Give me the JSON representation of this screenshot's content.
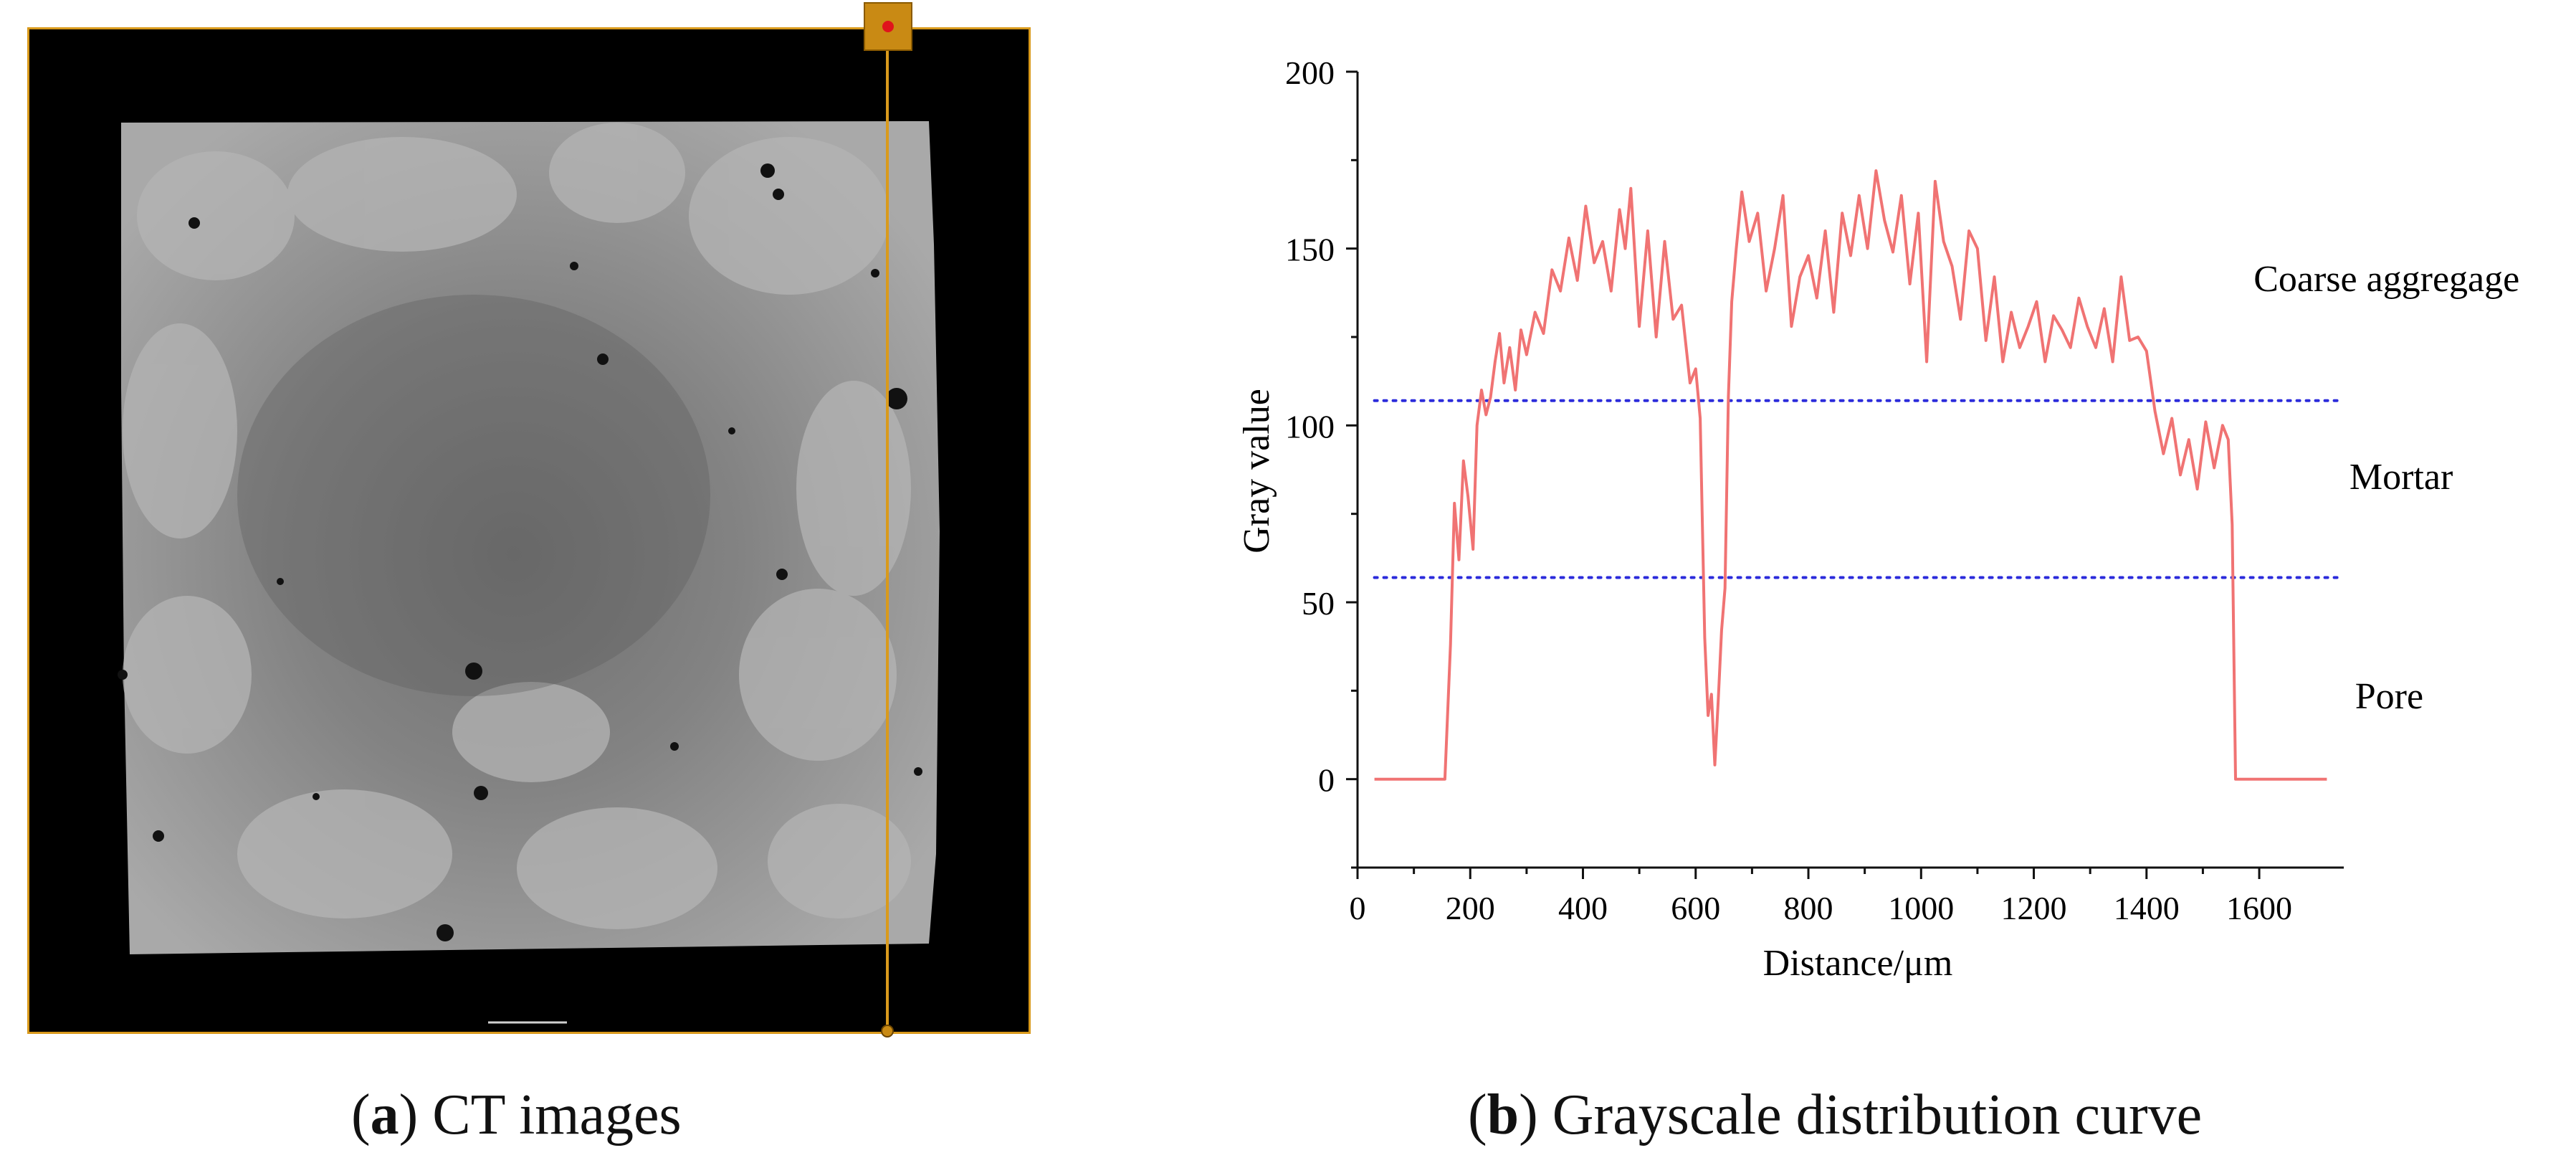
{
  "panel_a": {
    "caption_letter": "a",
    "caption_text": " CT images"
  },
  "panel_b": {
    "caption_letter": "b",
    "caption_text": " Grayscale distribution curve"
  },
  "chart_data": {
    "type": "line",
    "title": "",
    "xlabel": "Distance/μm",
    "ylabel": "Gray value",
    "xlim": [
      0,
      1750
    ],
    "ylim": [
      -25,
      200
    ],
    "xticks": [
      0,
      200,
      400,
      600,
      800,
      1000,
      1200,
      1400,
      1600
    ],
    "yticks": [
      0,
      50,
      100,
      150,
      200
    ],
    "grid": false,
    "line_color": "#f07373",
    "threshold_color": "#2b2bdb",
    "thresholds": [
      107,
      57
    ],
    "region_labels": [
      {
        "text": "Coarse aggregage",
        "x": 1590,
        "y": 138
      },
      {
        "text": "Mortar",
        "x": 1760,
        "y": 82
      },
      {
        "text": "Pore",
        "x": 1770,
        "y": 20
      }
    ],
    "series": [
      {
        "x": [
          30,
          130,
          155,
          165,
          172,
          180,
          188,
          196,
          205,
          212,
          220,
          228,
          236,
          244,
          252,
          260,
          270,
          280,
          290,
          300,
          315,
          330,
          345,
          360,
          375,
          390,
          405,
          420,
          435,
          450,
          465,
          475,
          485,
          500,
          515,
          530,
          545,
          560,
          575,
          590,
          600,
          608,
          616,
          622,
          628,
          634,
          640,
          646,
          652,
          658,
          664,
          672,
          682,
          695,
          710,
          725,
          740,
          755,
          770,
          785,
          800,
          815,
          830,
          845,
          860,
          875,
          890,
          905,
          920,
          935,
          950,
          965,
          980,
          995,
          1010,
          1025,
          1040,
          1055,
          1070,
          1085,
          1100,
          1115,
          1130,
          1145,
          1160,
          1175,
          1190,
          1205,
          1220,
          1235,
          1250,
          1265,
          1280,
          1295,
          1310,
          1325,
          1340,
          1355,
          1370,
          1385,
          1400,
          1415,
          1430,
          1445,
          1460,
          1475,
          1490,
          1505,
          1520,
          1535,
          1545,
          1552,
          1558,
          1570,
          1620,
          1720
        ],
        "y": [
          0,
          0,
          0,
          38,
          78,
          62,
          90,
          80,
          65,
          100,
          110,
          103,
          108,
          118,
          126,
          112,
          122,
          110,
          127,
          120,
          132,
          126,
          144,
          138,
          153,
          141,
          162,
          146,
          152,
          138,
          161,
          150,
          167,
          128,
          155,
          125,
          152,
          130,
          134,
          112,
          116,
          102,
          40,
          18,
          24,
          4,
          22,
          42,
          54,
          108,
          135,
          150,
          166,
          152,
          160,
          138,
          150,
          165,
          128,
          142,
          148,
          136,
          155,
          132,
          160,
          148,
          165,
          150,
          172,
          158,
          149,
          165,
          140,
          160,
          118,
          169,
          152,
          145,
          130,
          155,
          150,
          124,
          142,
          118,
          132,
          122,
          128,
          135,
          118,
          131,
          127,
          122,
          136,
          128,
          122,
          133,
          118,
          142,
          124,
          125,
          121,
          104,
          92,
          102,
          86,
          96,
          82,
          101,
          88,
          100,
          96,
          72,
          0,
          0,
          0,
          0
        ]
      }
    ]
  }
}
